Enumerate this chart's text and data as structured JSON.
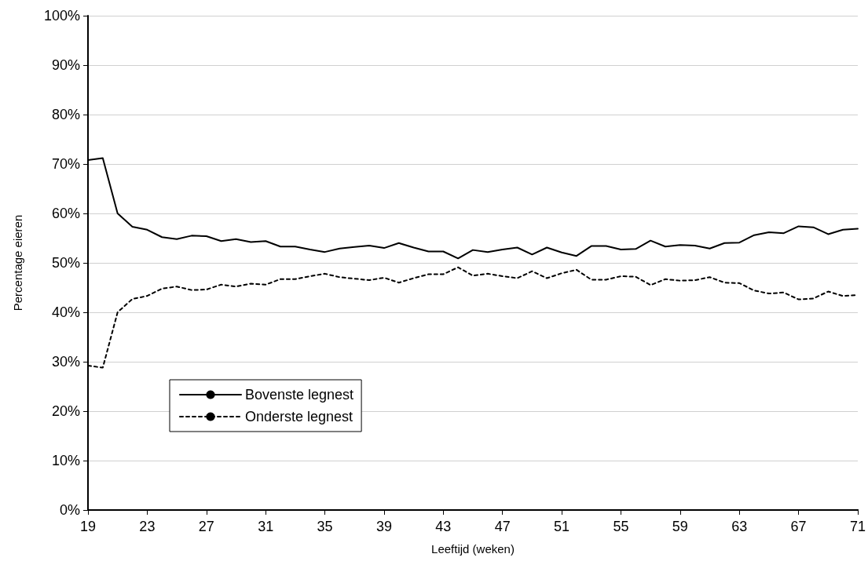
{
  "chart_data": {
    "type": "line",
    "xlabel": "Leeftijd (weken)",
    "ylabel": "Percentage eieren",
    "x": [
      19,
      20,
      21,
      22,
      23,
      24,
      25,
      26,
      27,
      28,
      29,
      30,
      31,
      32,
      33,
      34,
      35,
      36,
      37,
      38,
      39,
      40,
      41,
      42,
      43,
      44,
      45,
      46,
      47,
      48,
      49,
      50,
      51,
      52,
      53,
      54,
      55,
      56,
      57,
      58,
      59,
      60,
      61,
      62,
      63,
      64,
      65,
      66,
      67,
      68,
      69,
      70,
      71
    ],
    "series": [
      {
        "name": "Bovenste legnest",
        "color": "#000000",
        "line_style": "solid",
        "values": [
          70.8,
          71.2,
          60,
          57.3,
          56.7,
          55.2,
          54.8,
          55.5,
          55.4,
          54.4,
          54.8,
          54.2,
          54.4,
          53.3,
          53.3,
          52.7,
          52.2,
          52.9,
          53.2,
          53.5,
          53.0,
          54.0,
          53.1,
          52.3,
          52.3,
          50.9,
          52.6,
          52.2,
          52.7,
          53.1,
          51.7,
          53.1,
          52.1,
          51.4,
          53.4,
          53.4,
          52.7,
          52.8,
          54.5,
          53.3,
          53.6,
          53.5,
          52.9,
          54.0,
          54.1,
          55.6,
          56.2,
          56.0,
          57.4,
          57.2,
          55.8,
          56.7,
          56.9
        ]
      },
      {
        "name": "Onderste legnest",
        "color": "#000000",
        "line_style": "dashed",
        "values": [
          29.2,
          28.8,
          40,
          42.7,
          43.3,
          44.8,
          45.2,
          44.5,
          44.6,
          45.6,
          45.2,
          45.8,
          45.6,
          46.7,
          46.7,
          47.3,
          47.8,
          47.1,
          46.8,
          46.5,
          47.0,
          46.0,
          46.9,
          47.7,
          47.7,
          49.1,
          47.4,
          47.8,
          47.3,
          46.9,
          48.3,
          46.9,
          47.9,
          48.6,
          46.6,
          46.6,
          47.3,
          47.2,
          45.5,
          46.7,
          46.4,
          46.5,
          47.1,
          46.0,
          45.9,
          44.4,
          43.8,
          44.0,
          42.6,
          42.8,
          44.2,
          43.3,
          43.5
        ]
      }
    ],
    "xlim": [
      19,
      71
    ],
    "xticks": [
      19,
      23,
      27,
      31,
      35,
      39,
      43,
      47,
      51,
      55,
      59,
      63,
      67,
      71
    ],
    "ylim": [
      0,
      100
    ],
    "yticks": [
      {
        "value": 0,
        "label": "0%"
      },
      {
        "value": 10,
        "label": "10%"
      },
      {
        "value": 20,
        "label": "20%"
      },
      {
        "value": 30,
        "label": "30%"
      },
      {
        "value": 40,
        "label": "40%"
      },
      {
        "value": 50,
        "label": "50%"
      },
      {
        "value": 60,
        "label": "60%"
      },
      {
        "value": 70,
        "label": "70%"
      },
      {
        "value": 80,
        "label": "80%"
      },
      {
        "value": 90,
        "label": "90%"
      },
      {
        "value": 100,
        "label": "100%"
      }
    ],
    "grid": "y",
    "legend": "bottom left",
    "marker": "none"
  }
}
